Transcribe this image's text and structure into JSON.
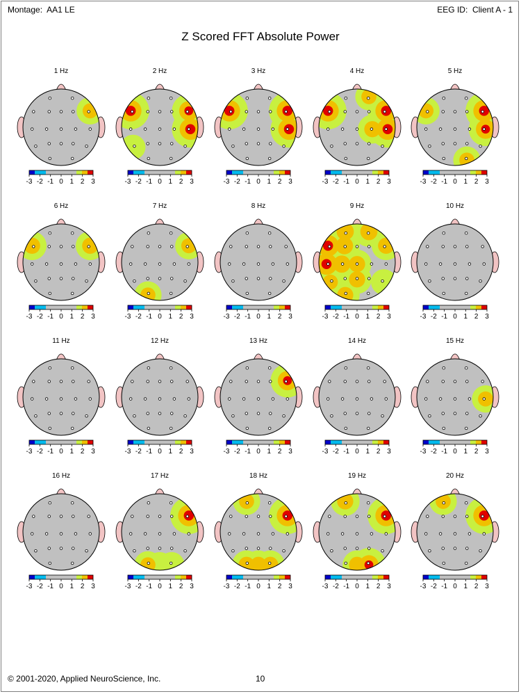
{
  "header": {
    "montage_label": "Montage:",
    "montage_value": "AA1 LE",
    "eeg_id_label": "EEG ID:",
    "eeg_id_value": "Client A - 1"
  },
  "title": "Z Scored FFT Absolute Power",
  "footer": {
    "copyright": "© 2001-2020, Applied NeuroScience, Inc.",
    "page_number": "10"
  },
  "colors": {
    "neutral": "#c0c0c0",
    "scale": [
      "#0000cc",
      "#00bbee",
      "#c0c0c0",
      "#c8f040",
      "#f0c000",
      "#e00000"
    ]
  },
  "chart_data": {
    "type": "heatmap",
    "description_scale": "z-score colour scale",
    "scale_ticks": [
      "-3",
      "-2",
      "-1",
      "0",
      "1",
      "2",
      "3"
    ],
    "scale_range": [
      -3,
      3
    ],
    "maps": [
      {
        "label": "1 Hz",
        "blobs": [
          [
            "F8",
            1.8
          ]
        ]
      },
      {
        "label": "2 Hz",
        "blobs": [
          [
            "F7",
            3.0
          ],
          [
            "F8",
            2.6
          ],
          [
            "T4",
            3.0
          ],
          [
            "T5",
            1.5
          ]
        ]
      },
      {
        "label": "3 Hz",
        "blobs": [
          [
            "F7",
            3.0
          ],
          [
            "F8",
            3.0
          ],
          [
            "T4",
            3.0
          ]
        ]
      },
      {
        "label": "4 Hz",
        "blobs": [
          [
            "FP2",
            1.8
          ],
          [
            "F7",
            3.0
          ],
          [
            "F8",
            3.0
          ],
          [
            "T4",
            3.0
          ],
          [
            "C4",
            2.0
          ]
        ]
      },
      {
        "label": "5 Hz",
        "blobs": [
          [
            "F7",
            1.8
          ],
          [
            "F8",
            3.0
          ],
          [
            "T4",
            2.6
          ],
          [
            "O2",
            1.8
          ]
        ]
      },
      {
        "label": "6 Hz",
        "blobs": [
          [
            "F7",
            2.0
          ],
          [
            "F8",
            2.0
          ]
        ]
      },
      {
        "label": "7 Hz",
        "blobs": [
          [
            "F8",
            1.8
          ],
          [
            "O1",
            1.8
          ]
        ]
      },
      {
        "label": "8 Hz",
        "blobs": []
      },
      {
        "label": "9 Hz",
        "blobs": [
          [
            "FP1",
            2.2
          ],
          [
            "FP2",
            2.2
          ],
          [
            "F3",
            2.2
          ],
          [
            "F7",
            3.0
          ],
          [
            "T3",
            3.0
          ],
          [
            "C3",
            2.2
          ],
          [
            "Cz",
            2.0
          ],
          [
            "Pz",
            2.0
          ],
          [
            "O1",
            2.0
          ],
          [
            "T5",
            1.8
          ],
          [
            "T6",
            1.6
          ],
          [
            "F8",
            2.0
          ]
        ]
      },
      {
        "label": "10 Hz",
        "blobs": []
      },
      {
        "label": "11 Hz",
        "blobs": []
      },
      {
        "label": "12 Hz",
        "blobs": []
      },
      {
        "label": "13 Hz",
        "blobs": [
          [
            "F8",
            2.6
          ]
        ]
      },
      {
        "label": "14 Hz",
        "blobs": []
      },
      {
        "label": "15 Hz",
        "blobs": [
          [
            "T4",
            1.8
          ]
        ]
      },
      {
        "label": "16 Hz",
        "blobs": []
      },
      {
        "label": "17 Hz",
        "blobs": [
          [
            "F8",
            3.0
          ],
          [
            "O1",
            1.8
          ],
          [
            "O2",
            1.6
          ],
          [
            "Oz",
            1.6
          ]
        ]
      },
      {
        "label": "18 Hz",
        "blobs": [
          [
            "F8",
            3.0
          ],
          [
            "FP1",
            1.8
          ],
          [
            "O1",
            2.0
          ],
          [
            "O2",
            2.0
          ],
          [
            "Oz",
            2.0
          ]
        ]
      },
      {
        "label": "19 Hz",
        "blobs": [
          [
            "F8",
            3.0
          ],
          [
            "FP1",
            2.0
          ],
          [
            "O2",
            2.6
          ],
          [
            "Oz",
            2.0
          ]
        ]
      },
      {
        "label": "20 Hz",
        "blobs": [
          [
            "F8",
            3.0
          ],
          [
            "FP1",
            1.8
          ]
        ]
      }
    ]
  }
}
